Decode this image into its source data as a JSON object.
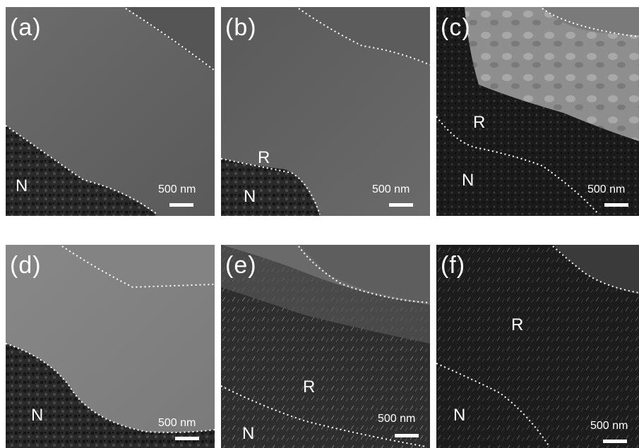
{
  "panels": [
    {
      "label": "(a)",
      "regions": [
        "N"
      ],
      "scale": "500 nm"
    },
    {
      "label": "(b)",
      "regions": [
        "R",
        "N"
      ],
      "scale": "500 nm"
    },
    {
      "label": "(c)",
      "regions": [
        "R",
        "N"
      ],
      "scale": "500 nm"
    },
    {
      "label": "(d)",
      "regions": [
        "N"
      ],
      "scale": "500 nm"
    },
    {
      "label": "(e)",
      "regions": [
        "R",
        "N"
      ],
      "scale": "500 nm"
    },
    {
      "label": "(f)",
      "regions": [
        "R",
        "N"
      ],
      "scale": "500 nm"
    }
  ],
  "colors": {
    "background": "#ffffff",
    "boundary_line": "#ffffff",
    "text": "#ffffff"
  }
}
